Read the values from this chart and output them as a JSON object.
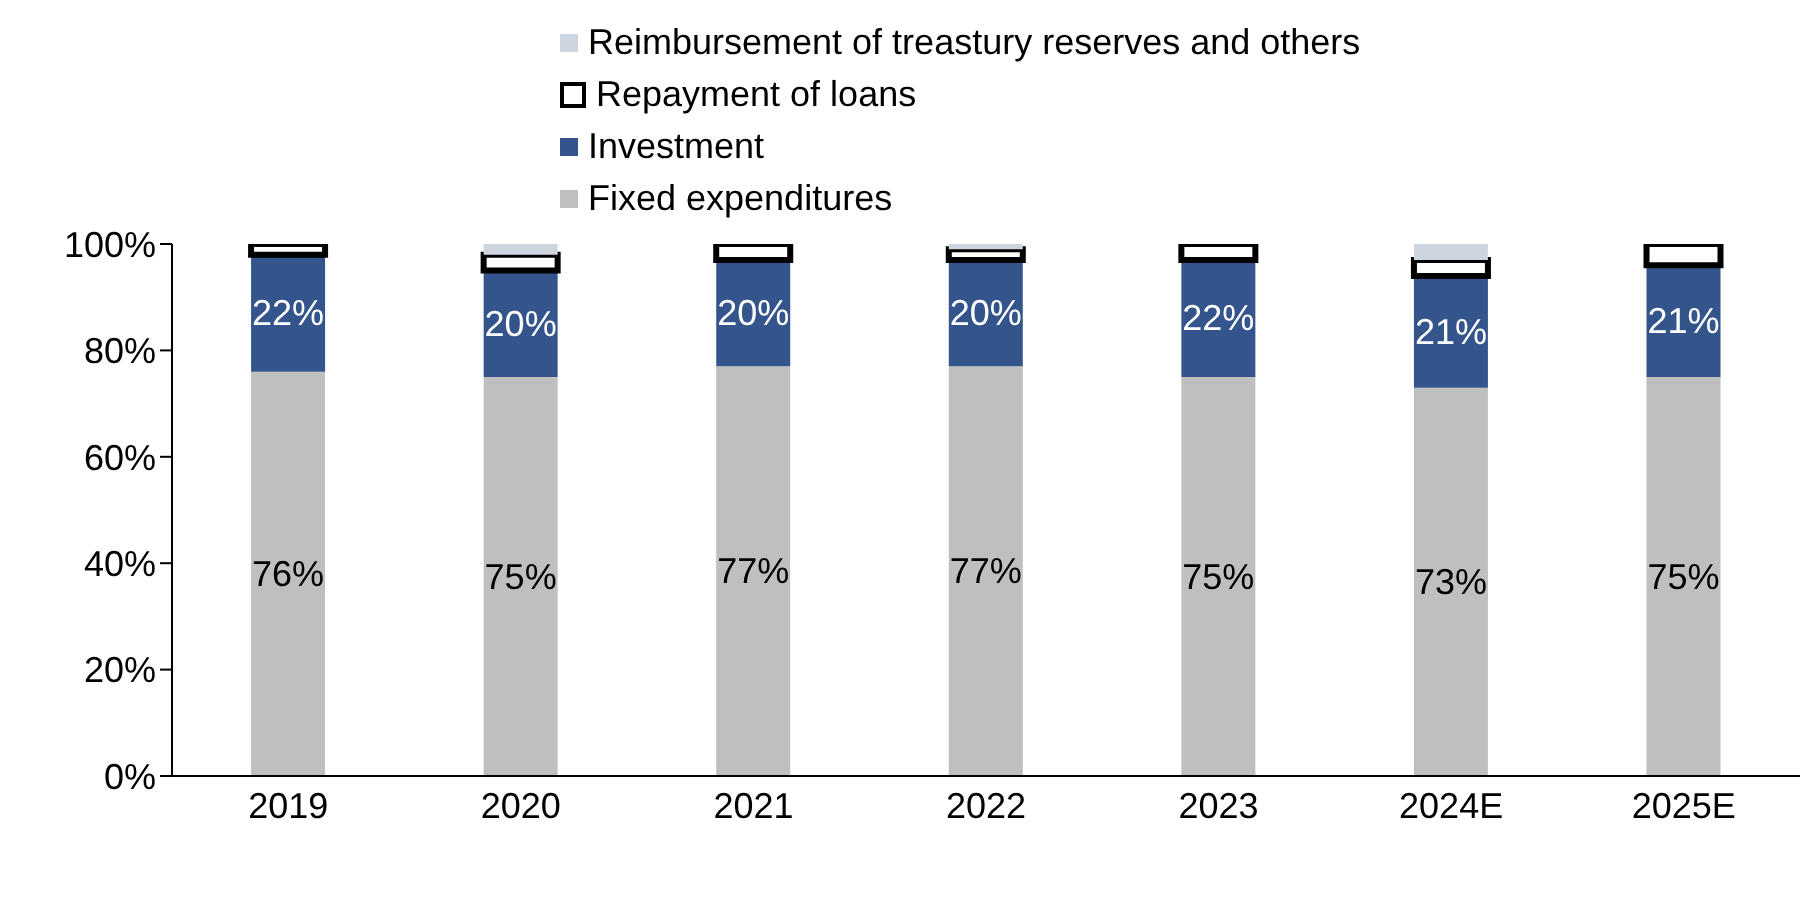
{
  "chart_data": {
    "type": "bar",
    "stacked": true,
    "categories": [
      "2019",
      "2020",
      "2021",
      "2022",
      "2023",
      "2024E",
      "2025E"
    ],
    "series": [
      {
        "name": "Fixed expenditures",
        "color": "#bfbfbf",
        "values": [
          76,
          75,
          77,
          77,
          75,
          73,
          75
        ],
        "value_labels": [
          "76%",
          "75%",
          "77%",
          "77%",
          "75%",
          "73%",
          "75%"
        ]
      },
      {
        "name": "Investment",
        "color": "#34558b",
        "values": [
          22,
          20,
          20,
          20,
          22,
          21,
          21
        ],
        "value_labels": [
          "22%",
          "20%",
          "20%",
          "20%",
          "22%",
          "21%",
          "21%"
        ]
      },
      {
        "name": "Repayment of loans",
        "color": "#ffffff",
        "values": [
          2,
          3,
          3,
          2,
          3,
          3,
          4
        ]
      },
      {
        "name": "Reimbursement of treastury reserves and others",
        "color": "#cfd5e0",
        "values": [
          0,
          2,
          0,
          1,
          0,
          3,
          0
        ]
      }
    ],
    "ylim": [
      0,
      100
    ],
    "yticks": [
      {
        "value": 0,
        "label": "0%"
      },
      {
        "value": 20,
        "label": "20%"
      },
      {
        "value": 40,
        "label": "40%"
      },
      {
        "value": 60,
        "label": "60%"
      },
      {
        "value": 80,
        "label": "80%"
      },
      {
        "value": 100,
        "label": "100%"
      }
    ],
    "grid": false,
    "legend": "top"
  }
}
